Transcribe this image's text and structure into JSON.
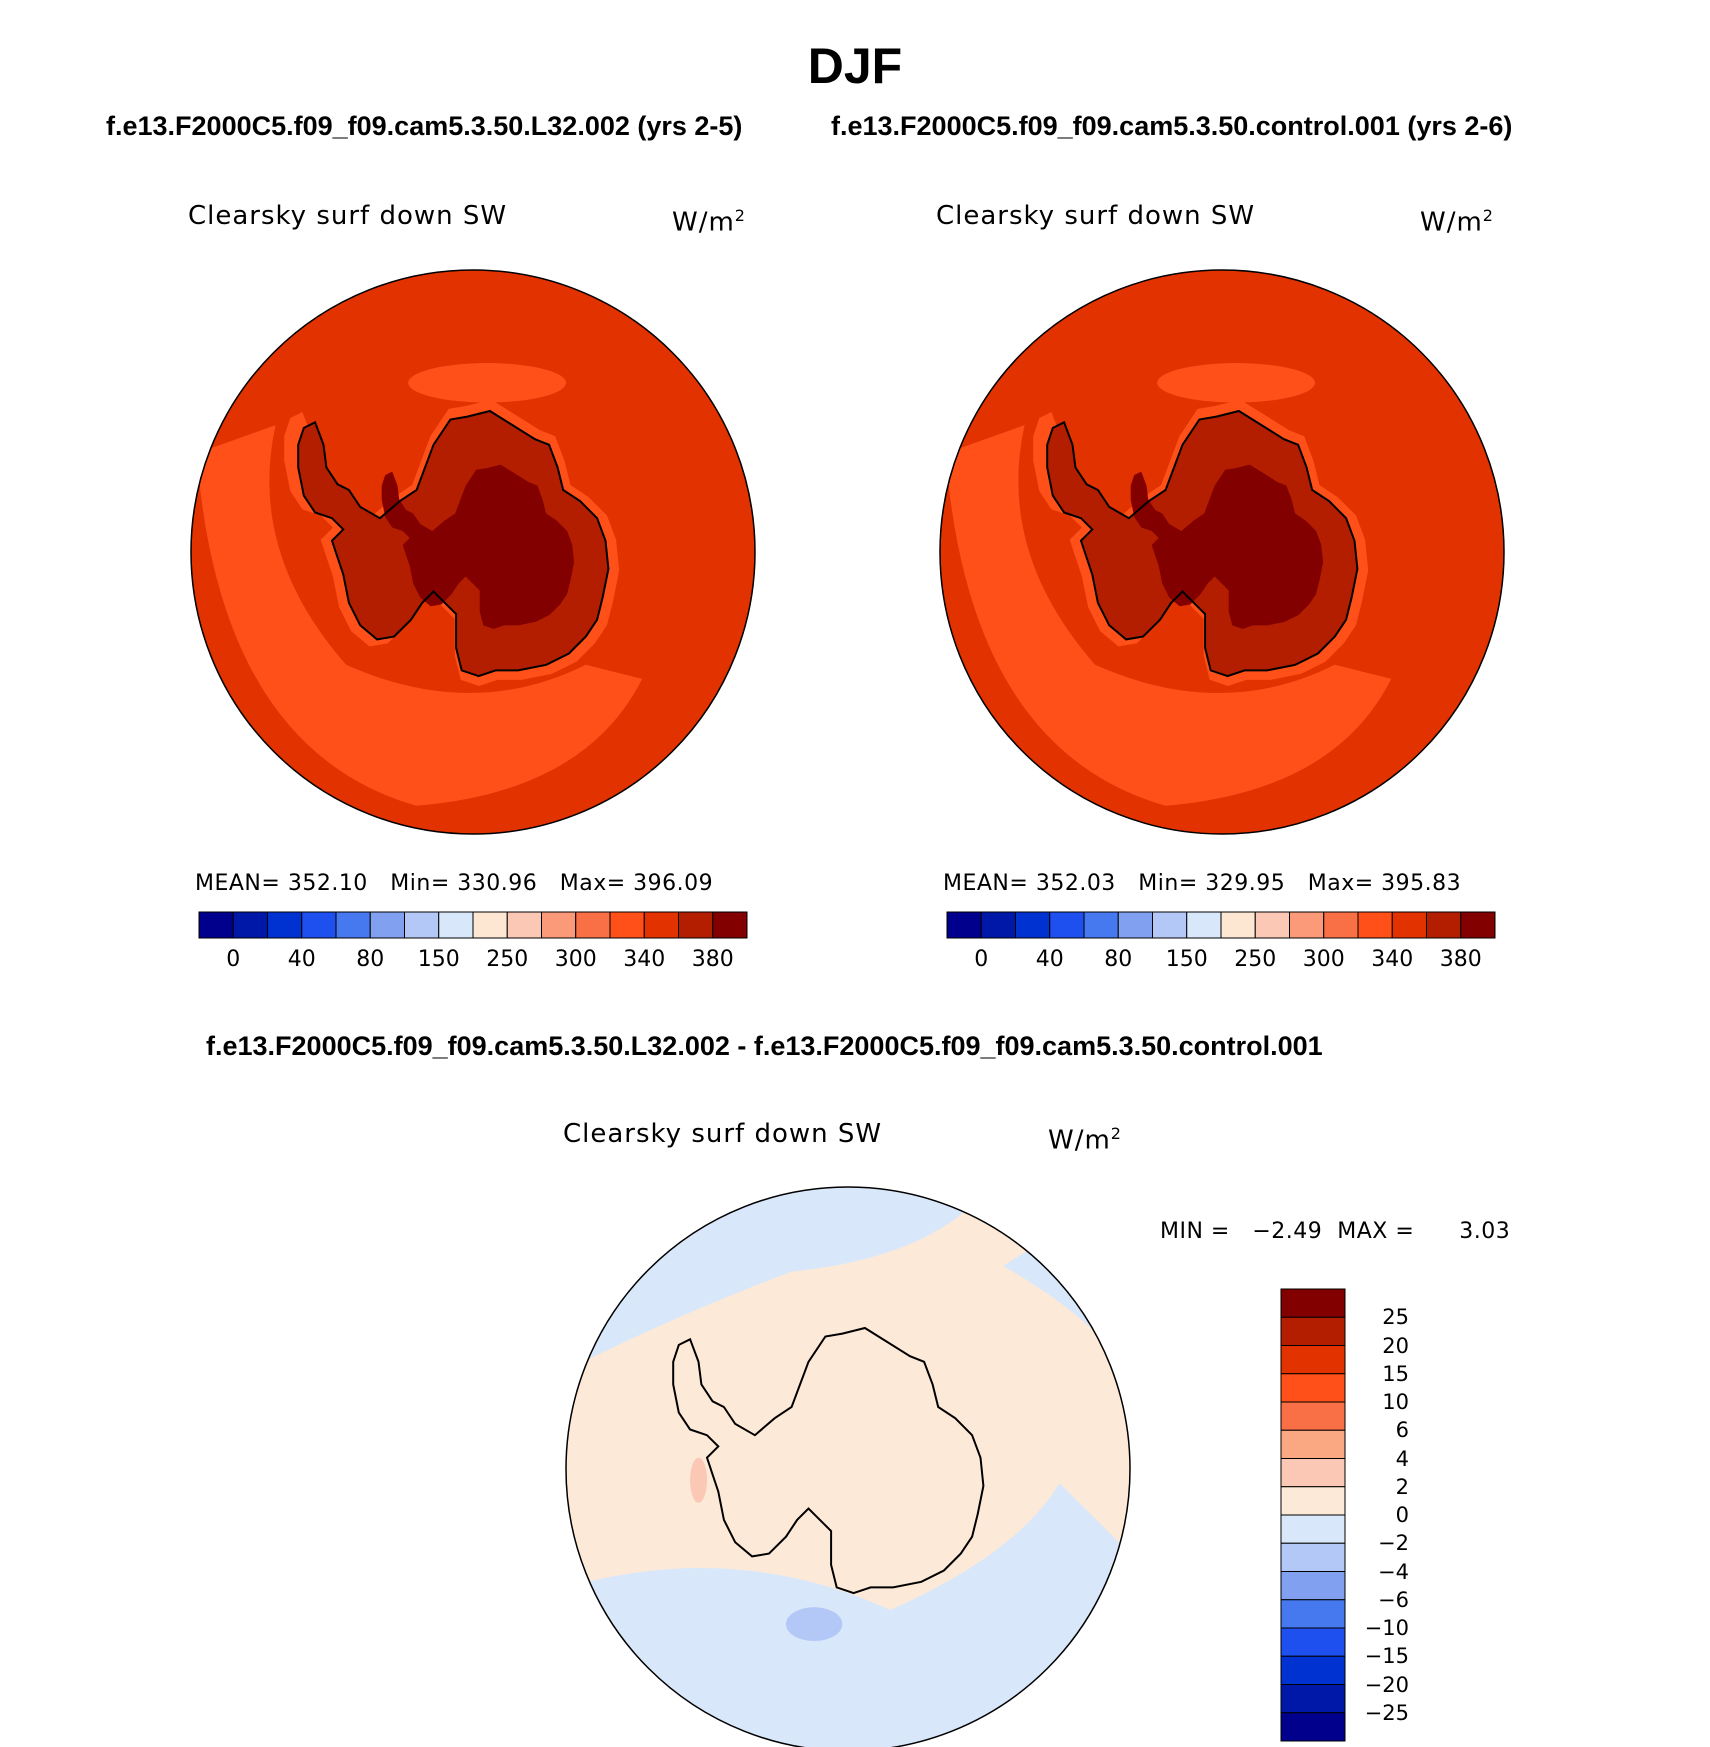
{
  "figure": {
    "title": "DJF",
    "panel1_caption": "f.e13.F2000C5.f09_f09.cam5.3.50.L32.002 (yrs 2-5)",
    "panel2_caption": "f.e13.F2000C5.f09_f09.cam5.3.50.control.001 (yrs 2-6)",
    "diff_caption": "f.e13.F2000C5.f09_f09.cam5.3.50.L32.002 - f.e13.F2000C5.f09_f09.cam5.3.50.control.001"
  },
  "panels": [
    {
      "variable": "Clearsky surf down SW",
      "units": "W/m",
      "units_sup": "2",
      "mean_label": "MEAN=",
      "mean": "352.10",
      "min_label": "Min=",
      "min": "330.96",
      "max_label": "Max=",
      "max": "396.09"
    },
    {
      "variable": "Clearsky surf down SW",
      "units": "W/m",
      "units_sup": "2",
      "mean_label": "MEAN=",
      "mean": "352.03",
      "min_label": "Min=",
      "min": "329.95",
      "max_label": "Max=",
      "max": "395.83"
    }
  ],
  "diff_panel": {
    "variable": "Clearsky surf down SW",
    "units": "W/m",
    "units_sup": "2",
    "stats_text": "MIN =   −2.49  MAX =      3.03"
  },
  "colorbar_abs": {
    "colors": [
      "#00008c",
      "#0018a8",
      "#0032d2",
      "#1e50f0",
      "#4678f0",
      "#82a0f0",
      "#b4c8f8",
      "#d8e8fa",
      "#fde6d2",
      "#fac8b4",
      "#fa9a78",
      "#fa7046",
      "#ff5019",
      "#e13200",
      "#b41e00",
      "#820000"
    ],
    "ticks": [
      "0",
      "40",
      "80",
      "150",
      "250",
      "300",
      "340",
      "380"
    ]
  },
  "colorbar_diff": {
    "colors": [
      "#820000",
      "#b41e00",
      "#e13200",
      "#ff5019",
      "#fa7046",
      "#faa882",
      "#fac8b4",
      "#fde9d8",
      "#d8e8fa",
      "#b4c8f8",
      "#82a0f0",
      "#4678f0",
      "#1e50f0",
      "#0032d2",
      "#0018a8",
      "#00008c"
    ],
    "ticks": [
      "25",
      "20",
      "15",
      "10",
      "6",
      "4",
      "2",
      "0",
      "−2",
      "−4",
      "−6",
      "−10",
      "−15",
      "−20",
      "−25"
    ]
  },
  "map_colors": {
    "ocean_outer": "#e13200",
    "ocean_inner": "#ff5019",
    "coast_band": "#b41e00",
    "interior": "#820000",
    "diff_neg": "#d8e8fa",
    "diff_pos": "#fde9d8",
    "diff_neg2": "#b4c8f8",
    "diff_pos2": "#fac8b4"
  }
}
